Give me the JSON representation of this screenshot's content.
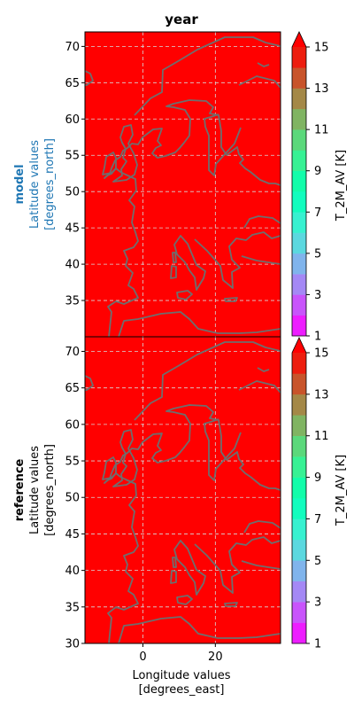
{
  "figure": {
    "title": "year",
    "colors": {
      "field": "#ff0000",
      "coast": "#6e6e6e",
      "grid": "#d8d8d8"
    }
  },
  "chart_data": [
    {
      "type": "heatmap",
      "panel_label": "model",
      "ylabel": "Latitude values",
      "yunit": "[degrees_north]",
      "label_color": "#1f77b4",
      "xlim": [
        -16,
        38
      ],
      "ylim": [
        30,
        72
      ],
      "yticks": [
        35,
        40,
        45,
        50,
        55,
        60,
        65,
        70
      ],
      "grid": true,
      "field_value": 15,
      "colorbar": {
        "label": "T_2M_AV [K]",
        "range": [
          1,
          15
        ],
        "ticks": [
          1,
          3,
          5,
          7,
          9,
          11,
          13,
          15
        ],
        "levels": 14,
        "extend": "max"
      }
    },
    {
      "type": "heatmap",
      "panel_label": "reference",
      "ylabel": "Latitude values",
      "yunit": "[degrees_north]",
      "label_color": "#000000",
      "xlabel": "Longitude values",
      "xunit": "[degrees_east]",
      "xlim": [
        -16,
        38
      ],
      "ylim": [
        30,
        72
      ],
      "xticks": [
        0,
        20
      ],
      "yticks": [
        30,
        35,
        40,
        45,
        50,
        55,
        60,
        65,
        70
      ],
      "grid": true,
      "field_value": 15,
      "colorbar": {
        "label": "T_2M_AV [K]",
        "range": [
          1,
          15
        ],
        "ticks": [
          1,
          3,
          5,
          7,
          9,
          11,
          13,
          15
        ],
        "levels": 14,
        "extend": "max"
      }
    }
  ]
}
